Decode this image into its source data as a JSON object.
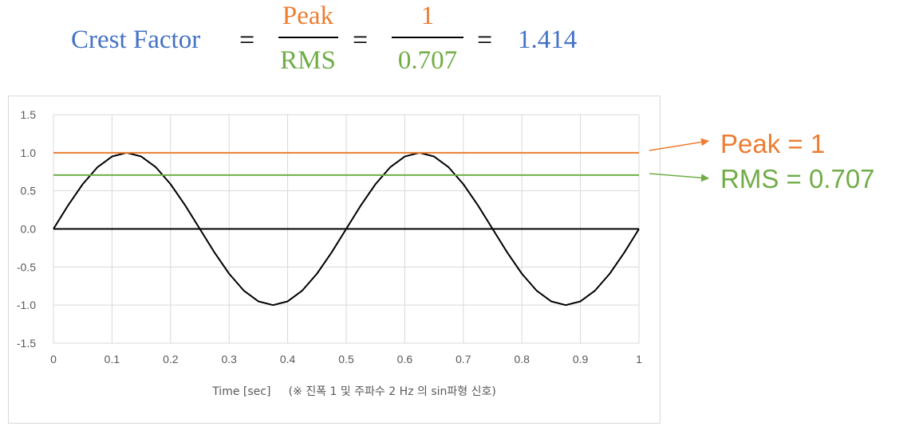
{
  "formula": {
    "lhs": "Crest Factor",
    "eq": "=",
    "num1": "Peak",
    "den1": "RMS",
    "num2": "1",
    "den2": "0.707",
    "result": "1.414",
    "colors": {
      "blue": "#4472c4",
      "orange": "#ed7d31",
      "green": "#70ad47"
    }
  },
  "annotations": {
    "peak_label": "Peak = 1",
    "rms_label": "RMS = 0.707"
  },
  "chart_data": {
    "type": "line",
    "xlabel": "Time [sec]     (※ 진폭 1 및 주파수 2 Hz 의 sin파형 신호)",
    "xlim": [
      0,
      1
    ],
    "ylim": [
      -1.5,
      1.5
    ],
    "x_ticks": [
      "0",
      "0.1",
      "0.2",
      "0.3",
      "0.4",
      "0.5",
      "0.6",
      "0.7",
      "0.8",
      "0.9",
      "1"
    ],
    "y_ticks": [
      "1.5",
      "1.0",
      "0.5",
      "0.0",
      "-0.5",
      "-1.0",
      "-1.5"
    ],
    "grid": true,
    "series": [
      {
        "color": "#000000",
        "x": [
          0,
          0.025,
          0.05,
          0.075,
          0.1,
          0.125,
          0.15,
          0.175,
          0.2,
          0.225,
          0.25,
          0.275,
          0.3,
          0.325,
          0.35,
          0.375,
          0.4,
          0.425,
          0.45,
          0.475,
          0.5,
          0.525,
          0.55,
          0.575,
          0.6,
          0.625,
          0.65,
          0.675,
          0.7,
          0.725,
          0.75,
          0.775,
          0.8,
          0.825,
          0.85,
          0.875,
          0.9,
          0.925,
          0.95,
          0.975,
          1
        ],
        "y": [
          0,
          0.309,
          0.588,
          0.809,
          0.951,
          1.0,
          0.951,
          0.809,
          0.588,
          0.309,
          0,
          -0.309,
          -0.588,
          -0.809,
          -0.951,
          -1.0,
          -0.951,
          -0.809,
          -0.588,
          -0.309,
          0,
          0.309,
          0.588,
          0.809,
          0.951,
          1.0,
          0.951,
          0.809,
          0.588,
          0.309,
          0,
          -0.309,
          -0.588,
          -0.809,
          -0.951,
          -1.0,
          -0.951,
          -0.809,
          -0.588,
          -0.309,
          0
        ]
      },
      {
        "color": "#ed7d31",
        "x": [
          0,
          1
        ],
        "y": [
          1,
          1
        ]
      },
      {
        "color": "#70ad47",
        "x": [
          0,
          1
        ],
        "y": [
          0.707,
          0.707
        ]
      },
      {
        "color": "#000000",
        "x": [
          0,
          1
        ],
        "y": [
          0,
          0
        ]
      }
    ]
  }
}
